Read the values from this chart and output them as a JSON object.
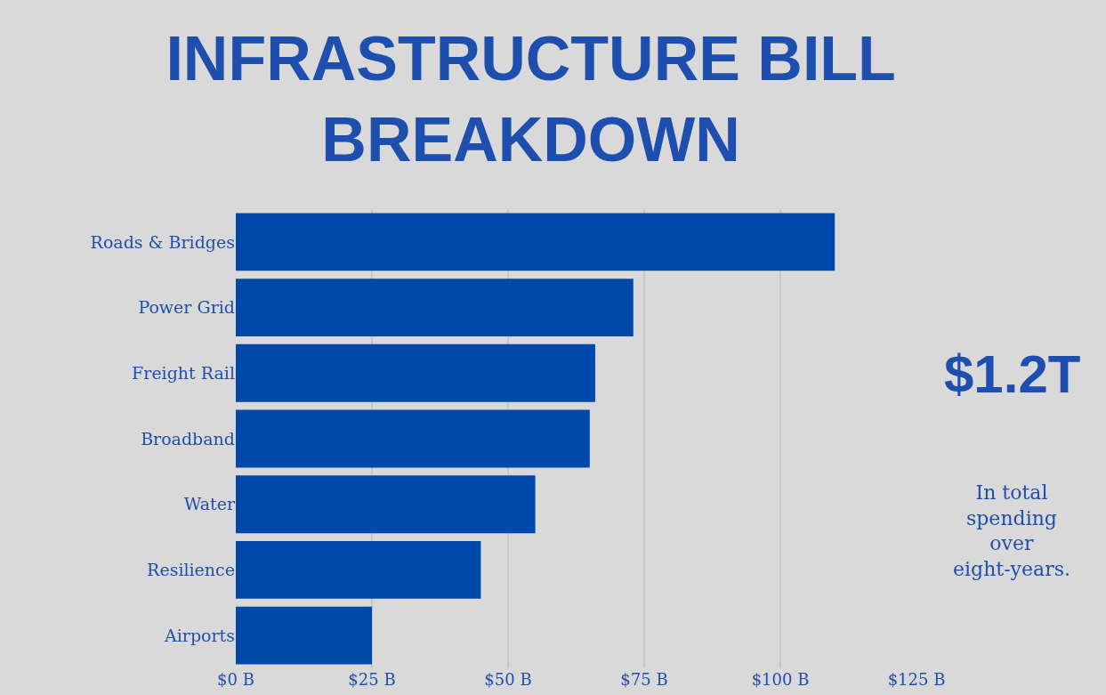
{
  "chart_data": {
    "type": "bar",
    "orientation": "horizontal",
    "title": "INFRASTRUCTURE BILL BREAKDOWN",
    "categories": [
      "Roads & Bridges",
      "Power Grid",
      "Freight Rail",
      "Broadband",
      "Water",
      "Resilience",
      "Airports"
    ],
    "values": [
      110,
      73,
      66,
      65,
      55,
      45,
      25
    ],
    "color": "#0049ac",
    "xlim": [
      0,
      125
    ],
    "xticks": [
      {
        "value": 0,
        "label": "$0 B"
      },
      {
        "value": 25,
        "label": "$25 B"
      },
      {
        "value": 50,
        "label": "$50 B"
      },
      {
        "value": 75,
        "label": "$75 B"
      },
      {
        "value": 100,
        "label": "$100 B"
      },
      {
        "value": 125,
        "label": "$125 B"
      }
    ],
    "grid": "x",
    "legend": false,
    "annotations": [
      "$1.2T",
      "In total spending over eight-years."
    ]
  }
}
